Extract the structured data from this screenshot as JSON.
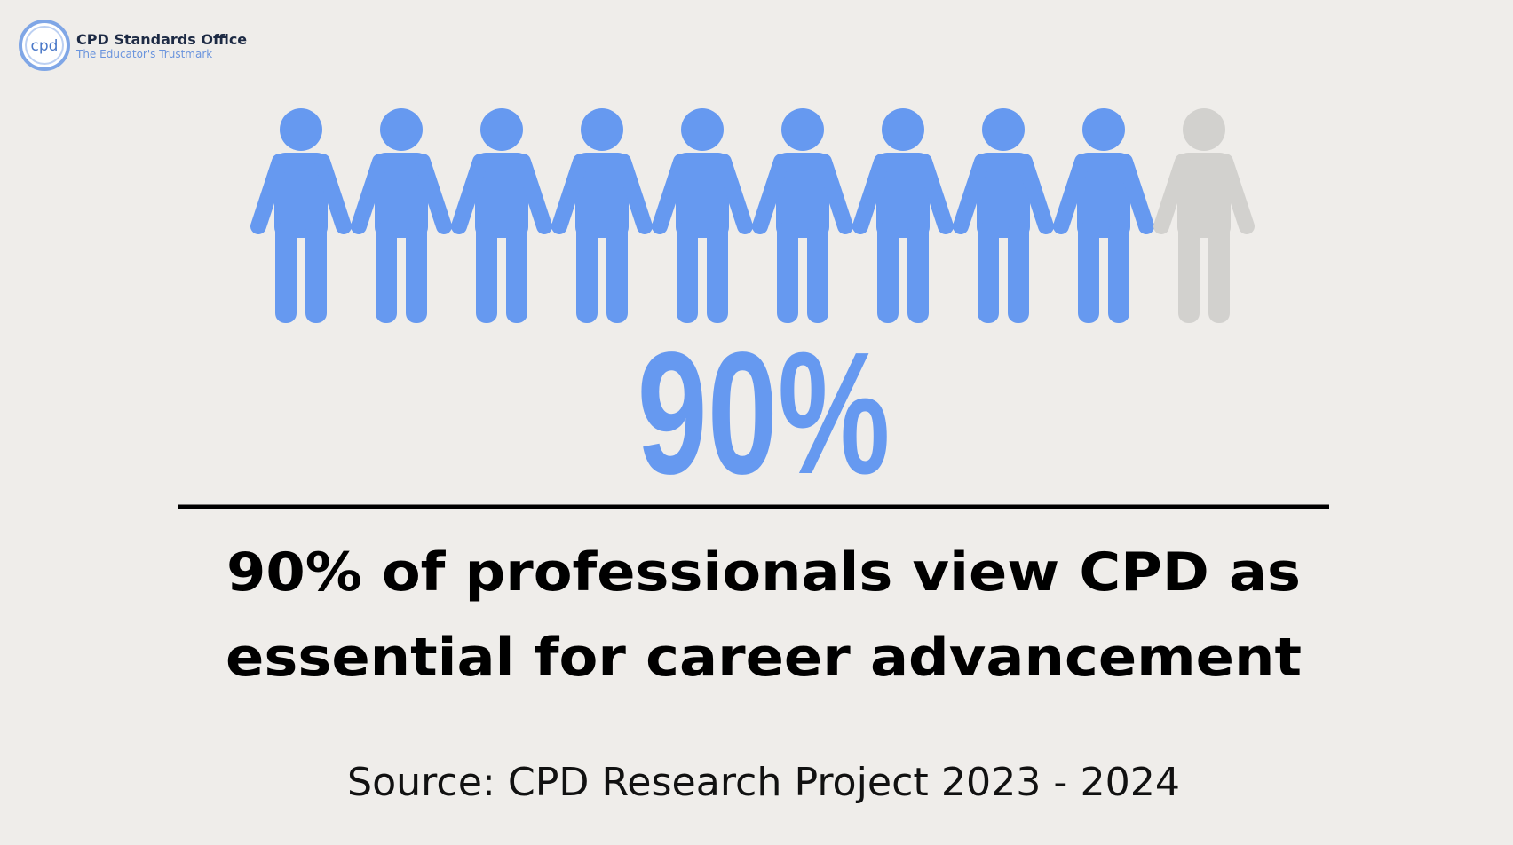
{
  "brand": {
    "name": "CPD Standards Office",
    "tagline": "The Educator's Trustmark",
    "logo_text": "cpd"
  },
  "pictogram": {
    "filled": 9,
    "total": 10,
    "filled_color": "#6699f0",
    "empty_color": "#d2d1ce"
  },
  "stat": "90%",
  "headline": [
    "90% of professionals view CPD as",
    "essential for career advancement"
  ],
  "source": "Source: CPD Research Project 2023 - 2024"
}
